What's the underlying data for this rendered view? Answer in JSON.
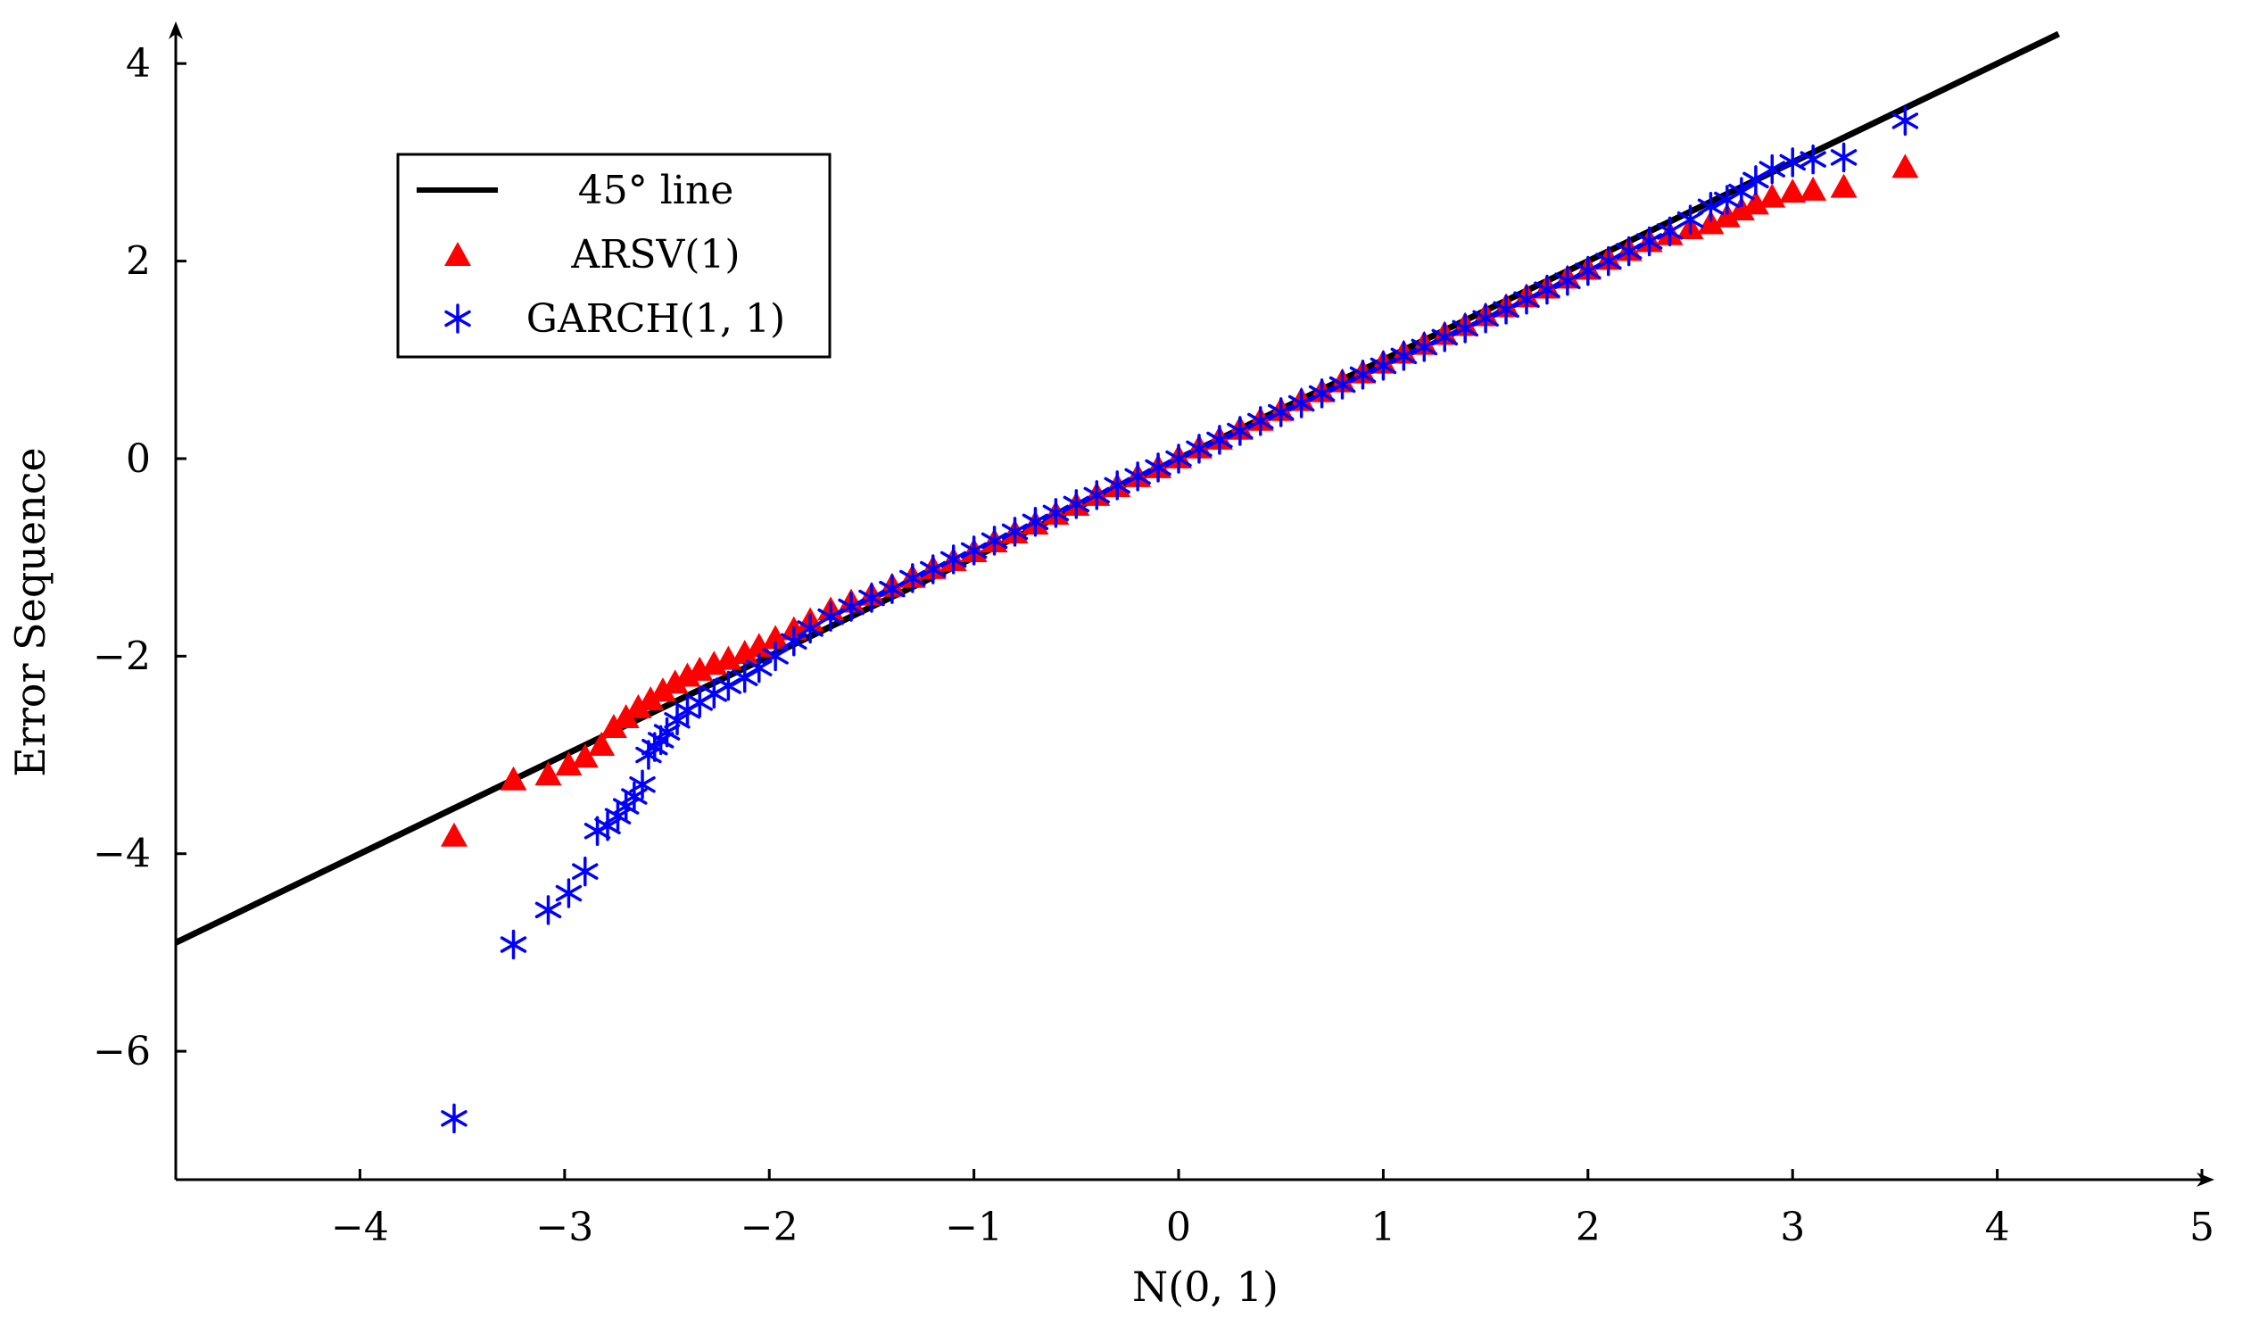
{
  "chart_data": {
    "type": "scatter",
    "title": "",
    "xlabel": "N(0,  1)",
    "ylabel": "Error Sequence",
    "xlim": [
      -4.9,
      5.0
    ],
    "ylim": [
      -7.3,
      4.3
    ],
    "x_ticks": [
      -4,
      -3,
      -2,
      -1,
      0,
      1,
      2,
      3,
      4,
      5
    ],
    "x_tick_labels": [
      "−4",
      "−3",
      "−2",
      "−1",
      "0",
      "1",
      "2",
      "3",
      "4",
      "5"
    ],
    "y_ticks": [
      -6,
      -4,
      -2,
      0,
      2,
      4
    ],
    "y_tick_labels": [
      "−6",
      "−4",
      "−2",
      "0",
      "2",
      "4"
    ],
    "grid": false,
    "legend_position": "top-left",
    "reference_line": {
      "name": "45° line",
      "x": [
        -4.9,
        4.3
      ],
      "y": [
        -4.9,
        4.3
      ],
      "color": "#000000"
    },
    "series": [
      {
        "name": "ARSV(1)",
        "marker": "triangle",
        "color": "#ff0000",
        "x": [
          -3.54,
          -3.25,
          -3.08,
          -2.98,
          -2.9,
          -2.82,
          -2.76,
          -2.7,
          -2.64,
          -2.58,
          -2.52,
          -2.46,
          -2.4,
          -2.34,
          -2.27,
          -2.2,
          -2.12,
          -2.05,
          -1.97,
          -1.88,
          -1.8,
          -1.7,
          -1.6,
          -1.5,
          -1.4,
          -1.3,
          -1.2,
          -1.1,
          -1.0,
          -0.9,
          -0.8,
          -0.7,
          -0.6,
          -0.5,
          -0.4,
          -0.3,
          -0.2,
          -0.1,
          0.0,
          0.1,
          0.2,
          0.3,
          0.4,
          0.5,
          0.6,
          0.7,
          0.8,
          0.9,
          1.0,
          1.1,
          1.2,
          1.3,
          1.4,
          1.5,
          1.6,
          1.7,
          1.8,
          1.9,
          2.0,
          2.1,
          2.2,
          2.3,
          2.4,
          2.5,
          2.6,
          2.68,
          2.75,
          2.82,
          2.9,
          3.0,
          3.1,
          3.25,
          3.55
        ],
        "y": [
          -3.82,
          -3.25,
          -3.2,
          -3.1,
          -3.02,
          -2.9,
          -2.72,
          -2.62,
          -2.52,
          -2.44,
          -2.35,
          -2.27,
          -2.2,
          -2.14,
          -2.08,
          -2.03,
          -1.97,
          -1.9,
          -1.82,
          -1.73,
          -1.64,
          -1.53,
          -1.45,
          -1.38,
          -1.29,
          -1.2,
          -1.11,
          -1.03,
          -0.94,
          -0.84,
          -0.75,
          -0.66,
          -0.56,
          -0.47,
          -0.37,
          -0.28,
          -0.18,
          -0.09,
          0.01,
          0.11,
          0.2,
          0.3,
          0.39,
          0.49,
          0.59,
          0.68,
          0.78,
          0.87,
          0.97,
          1.07,
          1.16,
          1.26,
          1.35,
          1.45,
          1.54,
          1.64,
          1.73,
          1.83,
          1.92,
          2.02,
          2.11,
          2.2,
          2.27,
          2.33,
          2.38,
          2.45,
          2.52,
          2.58,
          2.65,
          2.7,
          2.72,
          2.75,
          2.95
        ]
      },
      {
        "name": "GARCH(1, 1)",
        "marker": "asterisk",
        "color": "#0000ff",
        "x": [
          -3.54,
          -3.25,
          -3.08,
          -2.98,
          -2.9,
          -2.84,
          -2.79,
          -2.74,
          -2.7,
          -2.66,
          -2.62,
          -2.59,
          -2.56,
          -2.53,
          -2.5,
          -2.45,
          -2.4,
          -2.34,
          -2.27,
          -2.2,
          -2.12,
          -2.05,
          -1.97,
          -1.88,
          -1.8,
          -1.7,
          -1.6,
          -1.5,
          -1.4,
          -1.3,
          -1.2,
          -1.1,
          -1.0,
          -0.9,
          -0.8,
          -0.7,
          -0.6,
          -0.5,
          -0.4,
          -0.3,
          -0.2,
          -0.1,
          0.0,
          0.1,
          0.2,
          0.3,
          0.4,
          0.5,
          0.6,
          0.7,
          0.8,
          0.9,
          1.0,
          1.1,
          1.2,
          1.3,
          1.4,
          1.5,
          1.6,
          1.7,
          1.8,
          1.9,
          2.0,
          2.1,
          2.2,
          2.3,
          2.4,
          2.5,
          2.6,
          2.68,
          2.75,
          2.82,
          2.9,
          3.0,
          3.1,
          3.25,
          3.55
        ],
        "y": [
          -6.68,
          -4.92,
          -4.57,
          -4.4,
          -4.18,
          -3.77,
          -3.72,
          -3.62,
          -3.52,
          -3.42,
          -3.3,
          -3.0,
          -2.92,
          -2.85,
          -2.77,
          -2.65,
          -2.55,
          -2.47,
          -2.38,
          -2.3,
          -2.22,
          -2.12,
          -2.0,
          -1.85,
          -1.72,
          -1.6,
          -1.5,
          -1.41,
          -1.32,
          -1.21,
          -1.12,
          -1.02,
          -0.93,
          -0.83,
          -0.74,
          -0.64,
          -0.55,
          -0.46,
          -0.37,
          -0.27,
          -0.18,
          -0.09,
          0.0,
          0.1,
          0.19,
          0.28,
          0.38,
          0.47,
          0.56,
          0.66,
          0.75,
          0.85,
          0.94,
          1.04,
          1.13,
          1.23,
          1.32,
          1.42,
          1.51,
          1.61,
          1.71,
          1.8,
          1.9,
          2.0,
          2.1,
          2.2,
          2.3,
          2.42,
          2.55,
          2.62,
          2.7,
          2.82,
          2.93,
          3.0,
          3.03,
          3.05,
          3.42
        ]
      }
    ]
  }
}
